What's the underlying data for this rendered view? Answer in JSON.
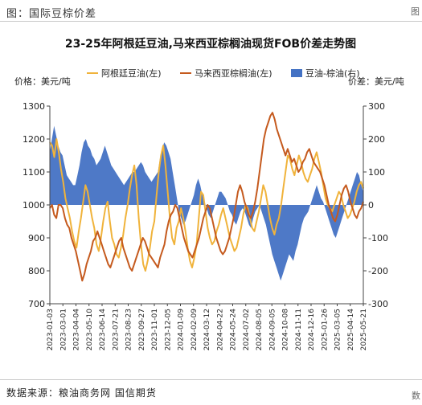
{
  "header": {
    "title": "图：国际豆棕价差",
    "edge_top": "图",
    "edge_bottom": "数"
  },
  "footer": {
    "source": "数据来源：粮油商务网  国信期货"
  },
  "chart_data": {
    "type": "line",
    "title": "23-25年阿根廷豆油,马来西亚棕榈油现货FOB价差走势图",
    "left_axis_label": "价格：美元/吨",
    "right_axis_label": "价差：美元/吨",
    "ylim_left": [
      700,
      1300
    ],
    "ylim_right": [
      -300,
      300
    ],
    "yticks_left": [
      700,
      800,
      900,
      1000,
      1100,
      1200,
      1300
    ],
    "yticks_right": [
      -300,
      -200,
      -100,
      0,
      100,
      200,
      300
    ],
    "x_tick_labels": [
      "2023-01-03",
      "2023-03-01",
      "2023-04-04",
      "2023-05-10",
      "2023-06-14",
      "2023-07-21",
      "2023-08-23",
      "2023-09-27",
      "2023-11-01",
      "2023-12-05",
      "2024-01-09",
      "2024-02-09",
      "2024-03-12",
      "2024-04-22",
      "2024-05-24",
      "2024-07-02",
      "2024-08-05",
      "2024-09-05",
      "2024-10-08",
      "2024-11-11",
      "2024-12-16",
      "2025-01-26",
      "2025-03-05",
      "2025-04-14",
      "2025-05-21"
    ],
    "legend": [
      {
        "name": "阿根廷豆油(左)",
        "color": "#f0b33b",
        "kind": "line"
      },
      {
        "name": "马来西亚棕榈油(左)",
        "color": "#c55a1e",
        "kind": "line"
      },
      {
        "name": "豆油-棕油(右)",
        "color": "#4472c4",
        "kind": "area"
      }
    ],
    "grid": false,
    "legend_position": "top",
    "series": [
      {
        "name": "阿根廷豆油(左)",
        "color": "#f0b33b",
        "axis": "left",
        "values": [
          1190,
          1180,
          1145,
          1200,
          1160,
          1110,
          1070,
          1020,
          990,
          960,
          920,
          890,
          870,
          920,
          960,
          1010,
          1060,
          1040,
          1000,
          960,
          930,
          880,
          860,
          900,
          950,
          990,
          1010,
          950,
          900,
          880,
          850,
          840,
          870,
          910,
          960,
          1000,
          1050,
          1090,
          1120,
          1060,
          960,
          880,
          820,
          800,
          830,
          870,
          920,
          950,
          1030,
          1100,
          1150,
          1180,
          1120,
          1040,
          960,
          900,
          880,
          930,
          950,
          990,
          960,
          920,
          870,
          830,
          810,
          840,
          880,
          960,
          1040,
          1030,
          980,
          930,
          900,
          880,
          890,
          920,
          940,
          970,
          990,
          960,
          930,
          900,
          880,
          860,
          870,
          900,
          930,
          970,
          1000,
          990,
          960,
          930,
          920,
          950,
          980,
          1020,
          1060,
          1040,
          1000,
          960,
          930,
          910,
          940,
          960,
          1000,
          1050,
          1100,
          1150,
          1140,
          1110,
          1090,
          1120,
          1150,
          1130,
          1100,
          1080,
          1070,
          1090,
          1110,
          1140,
          1160,
          1130,
          1100,
          1060,
          1020,
          1000,
          990,
          980,
          1000,
          1020,
          1040,
          1030,
          1000,
          980,
          960,
          970,
          990,
          1010,
          1040,
          1060,
          1070,
          1050
        ]
      },
      {
        "name": "马来西亚棕榈油(左)",
        "color": "#c55a1e",
        "axis": "left",
        "values": [
          990,
          1000,
          970,
          960,
          1000,
          1000,
          990,
          960,
          940,
          930,
          900,
          880,
          860,
          830,
          800,
          770,
          790,
          820,
          840,
          860,
          890,
          900,
          920,
          900,
          880,
          860,
          840,
          820,
          810,
          830,
          850,
          870,
          890,
          900,
          870,
          850,
          830,
          810,
          800,
          820,
          840,
          860,
          880,
          900,
          890,
          870,
          850,
          840,
          830,
          820,
          810,
          840,
          860,
          880,
          920,
          950,
          970,
          980,
          1000,
          990,
          960,
          930,
          900,
          880,
          860,
          850,
          840,
          860,
          880,
          900,
          930,
          960,
          980,
          1000,
          990,
          960,
          930,
          900,
          880,
          860,
          850,
          860,
          880,
          900,
          930,
          960,
          1000,
          1040,
          1060,
          1040,
          1010,
          990,
          970,
          960,
          980,
          1010,
          1050,
          1100,
          1150,
          1200,
          1230,
          1250,
          1270,
          1280,
          1260,
          1230,
          1210,
          1190,
          1170,
          1150,
          1170,
          1150,
          1130,
          1140,
          1120,
          1100,
          1110,
          1130,
          1140,
          1160,
          1170,
          1150,
          1130,
          1120,
          1110,
          1100,
          1080,
          1060,
          1030,
          1000,
          980,
          960,
          950,
          970,
          1000,
          1030,
          1050,
          1060,
          1040,
          1010,
          990,
          970,
          960,
          980,
          990,
          1010
        ]
      },
      {
        "name": "豆油-棕油(右)",
        "color": "#4472c4",
        "axis": "right",
        "kind": "area",
        "values": [
          160,
          200,
          240,
          210,
          180,
          160,
          150,
          120,
          90,
          80,
          70,
          60,
          60,
          90,
          120,
          160,
          190,
          200,
          180,
          170,
          150,
          140,
          120,
          130,
          140,
          160,
          180,
          160,
          140,
          120,
          110,
          100,
          90,
          80,
          70,
          60,
          70,
          80,
          90,
          100,
          100,
          110,
          120,
          130,
          120,
          100,
          90,
          80,
          70,
          80,
          90,
          100,
          140,
          170,
          190,
          180,
          160,
          140,
          100,
          60,
          20,
          -20,
          -40,
          -60,
          -50,
          -30,
          -10,
          10,
          30,
          60,
          80,
          60,
          30,
          10,
          -10,
          -30,
          -40,
          -20,
          0,
          20,
          40,
          40,
          30,
          20,
          0,
          -20,
          -30,
          -50,
          -60,
          -40,
          -20,
          -10,
          -20,
          -40,
          -60,
          -70,
          -40,
          -20,
          -10,
          0,
          -20,
          -40,
          -60,
          -90,
          -120,
          -150,
          -170,
          -190,
          -210,
          -230,
          -210,
          -190,
          -170,
          -150,
          -160,
          -170,
          -140,
          -120,
          -90,
          -60,
          -40,
          -30,
          -20,
          0,
          20,
          40,
          60,
          40,
          20,
          10,
          -10,
          -30,
          -50,
          -70,
          -90,
          -100,
          -80,
          -60,
          -40,
          -20,
          0,
          20,
          40,
          60,
          80,
          100,
          90,
          60,
          40
        ]
      }
    ]
  }
}
